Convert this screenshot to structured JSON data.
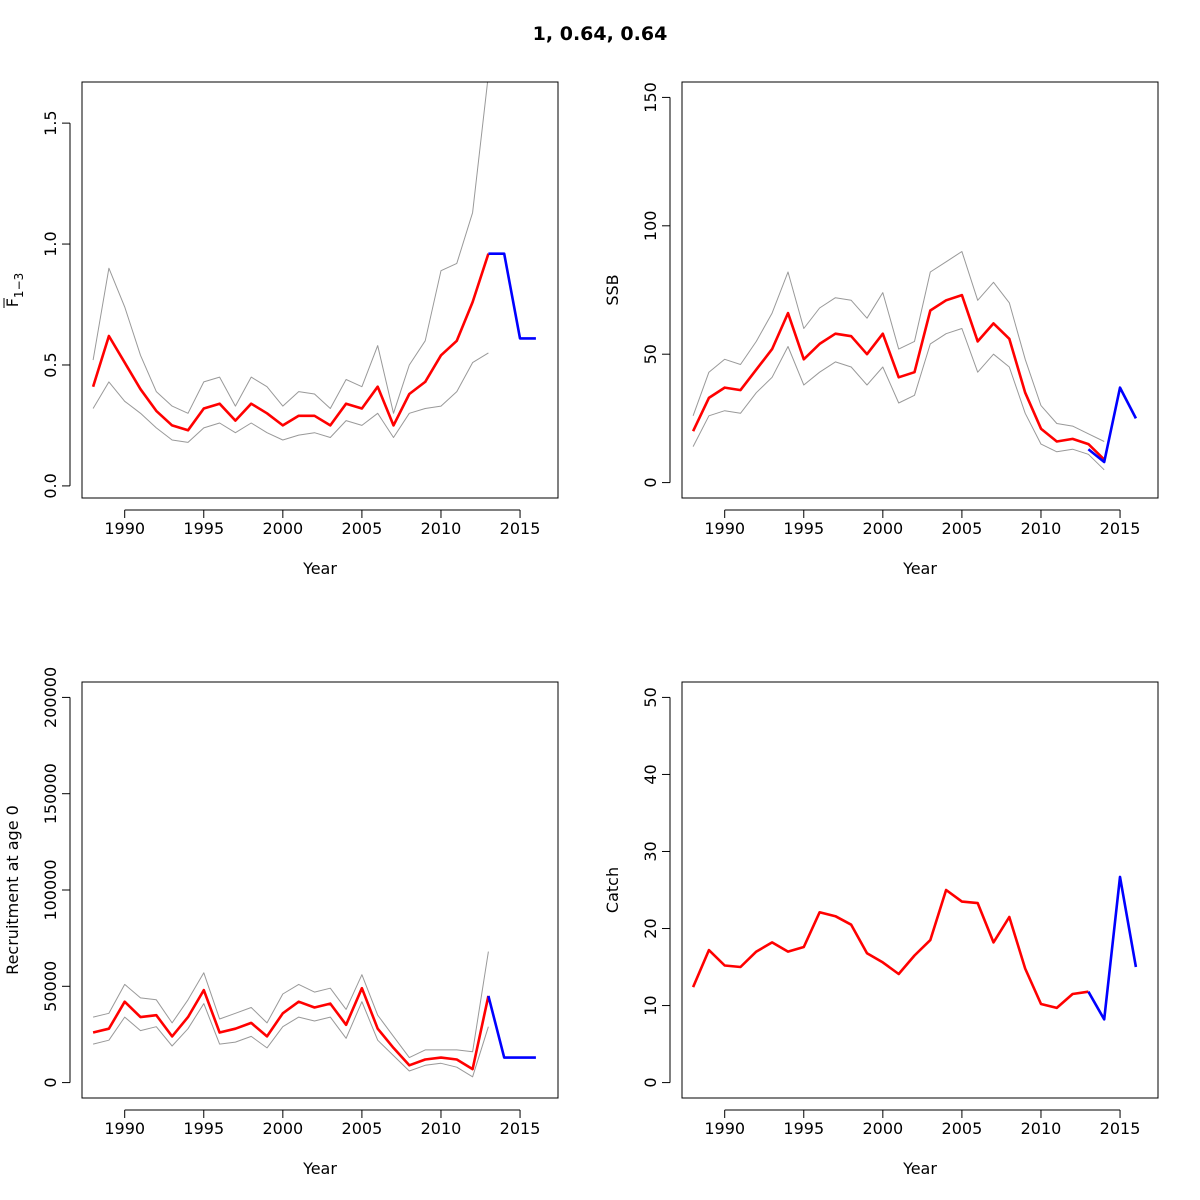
{
  "figure": {
    "title": "1, 0.64, 0.64"
  },
  "colors": {
    "estimate": "#ff0000",
    "projection": "#0000ff",
    "ci": "#999999",
    "axis": "#000000"
  },
  "chart_data": [
    {
      "type": "line",
      "xlabel": "Year",
      "ylabel_main": "F",
      "ylabel_sub": "1−3",
      "xlim": [
        1987.3,
        2017.4
      ],
      "ylim": [
        -0.05,
        1.67
      ],
      "xticks": [
        1990,
        1995,
        2000,
        2005,
        2010,
        2015
      ],
      "yticks": [
        0,
        0.5,
        1,
        1.5
      ],
      "ytick_labels": [
        "0.0",
        "0.5",
        "1.0",
        "1.5"
      ],
      "series": [
        {
          "role": "upper",
          "x": [
            1988,
            1989,
            1990,
            1991,
            1992,
            1993,
            1994,
            1995,
            1996,
            1997,
            1998,
            1999,
            2000,
            2001,
            2002,
            2003,
            2004,
            2005,
            2006,
            2007,
            2008,
            2009,
            2010,
            2011,
            2012,
            2013
          ],
          "values": [
            0.52,
            0.9,
            0.74,
            0.54,
            0.39,
            0.33,
            0.3,
            0.43,
            0.45,
            0.33,
            0.45,
            0.41,
            0.33,
            0.39,
            0.38,
            0.32,
            0.44,
            0.41,
            0.58,
            0.3,
            0.5,
            0.6,
            0.89,
            0.92,
            1.13,
            1.7
          ]
        },
        {
          "role": "lower",
          "x": [
            1988,
            1989,
            1990,
            1991,
            1992,
            1993,
            1994,
            1995,
            1996,
            1997,
            1998,
            1999,
            2000,
            2001,
            2002,
            2003,
            2004,
            2005,
            2006,
            2007,
            2008,
            2009,
            2010,
            2011,
            2012,
            2013
          ],
          "values": [
            0.32,
            0.43,
            0.35,
            0.3,
            0.24,
            0.19,
            0.18,
            0.24,
            0.26,
            0.22,
            0.26,
            0.22,
            0.19,
            0.21,
            0.22,
            0.2,
            0.27,
            0.25,
            0.3,
            0.2,
            0.3,
            0.32,
            0.33,
            0.39,
            0.51,
            0.55
          ]
        },
        {
          "role": "estimate",
          "x": [
            1988,
            1989,
            1990,
            1991,
            1992,
            1993,
            1994,
            1995,
            1996,
            1997,
            1998,
            1999,
            2000,
            2001,
            2002,
            2003,
            2004,
            2005,
            2006,
            2007,
            2008,
            2009,
            2010,
            2011,
            2012,
            2013
          ],
          "values": [
            0.41,
            0.62,
            0.51,
            0.4,
            0.31,
            0.25,
            0.23,
            0.32,
            0.34,
            0.27,
            0.34,
            0.3,
            0.25,
            0.29,
            0.29,
            0.25,
            0.34,
            0.32,
            0.41,
            0.25,
            0.38,
            0.43,
            0.54,
            0.6,
            0.76,
            0.96
          ]
        },
        {
          "role": "projection",
          "x": [
            2013,
            2014,
            2015,
            2016
          ],
          "values": [
            0.96,
            0.96,
            0.61,
            0.61
          ]
        }
      ]
    },
    {
      "type": "line",
      "xlabel": "Year",
      "ylabel": "SSB",
      "xlim": [
        1987.3,
        2017.4
      ],
      "ylim": [
        -6,
        156
      ],
      "xticks": [
        1990,
        1995,
        2000,
        2005,
        2010,
        2015
      ],
      "yticks": [
        0,
        50,
        100,
        150
      ],
      "ytick_labels": [
        "0",
        "50",
        "100",
        "150"
      ],
      "series": [
        {
          "role": "upper",
          "x": [
            1988,
            1989,
            1990,
            1991,
            1992,
            1993,
            1994,
            1995,
            1996,
            1997,
            1998,
            1999,
            2000,
            2001,
            2002,
            2003,
            2004,
            2005,
            2006,
            2007,
            2008,
            2009,
            2010,
            2011,
            2012,
            2013,
            2014
          ],
          "values": [
            26,
            43,
            48,
            46,
            55,
            66,
            82,
            60,
            68,
            72,
            71,
            64,
            74,
            52,
            55,
            82,
            86,
            90,
            71,
            78,
            70,
            48,
            30,
            23,
            22,
            19,
            16
          ]
        },
        {
          "role": "lower",
          "x": [
            1988,
            1989,
            1990,
            1991,
            1992,
            1993,
            1994,
            1995,
            1996,
            1997,
            1998,
            1999,
            2000,
            2001,
            2002,
            2003,
            2004,
            2005,
            2006,
            2007,
            2008,
            2009,
            2010,
            2011,
            2012,
            2013,
            2014
          ],
          "values": [
            14,
            26,
            28,
            27,
            35,
            41,
            53,
            38,
            43,
            47,
            45,
            38,
            45,
            31,
            34,
            54,
            58,
            60,
            43,
            50,
            45,
            27,
            15,
            12,
            13,
            11,
            5
          ]
        },
        {
          "role": "estimate",
          "x": [
            1988,
            1989,
            1990,
            1991,
            1992,
            1993,
            1994,
            1995,
            1996,
            1997,
            1998,
            1999,
            2000,
            2001,
            2002,
            2003,
            2004,
            2005,
            2006,
            2007,
            2008,
            2009,
            2010,
            2011,
            2012,
            2013,
            2014
          ],
          "values": [
            20,
            33,
            37,
            36,
            44,
            52,
            66,
            48,
            54,
            58,
            57,
            50,
            58,
            41,
            43,
            67,
            71,
            73,
            55,
            62,
            56,
            35,
            21,
            16,
            17,
            15,
            9
          ]
        },
        {
          "role": "projection",
          "x": [
            2013,
            2014,
            2015,
            2016
          ],
          "values": [
            13,
            8,
            37,
            25
          ]
        }
      ]
    },
    {
      "type": "line",
      "xlabel": "Year",
      "ylabel": "Recruitment at age 0",
      "xlim": [
        1987.3,
        2017.4
      ],
      "ylim": [
        -8000,
        208000
      ],
      "xticks": [
        1990,
        1995,
        2000,
        2005,
        2010,
        2015
      ],
      "yticks": [
        0,
        50000,
        100000,
        150000,
        200000
      ],
      "ytick_labels": [
        "0",
        "50000",
        "100000",
        "150000",
        "200000"
      ],
      "series": [
        {
          "role": "upper",
          "x": [
            1988,
            1989,
            1990,
            1991,
            1992,
            1993,
            1994,
            1995,
            1996,
            1997,
            1998,
            1999,
            2000,
            2001,
            2002,
            2003,
            2004,
            2005,
            2006,
            2007,
            2008,
            2009,
            2010,
            2011,
            2012,
            2013
          ],
          "values": [
            34000,
            36000,
            51000,
            44000,
            43000,
            31000,
            43000,
            57000,
            33000,
            36000,
            39000,
            31000,
            46000,
            51000,
            47000,
            49000,
            38000,
            56000,
            35000,
            24000,
            13000,
            17000,
            17000,
            17000,
            16000,
            68000
          ]
        },
        {
          "role": "lower",
          "x": [
            1988,
            1989,
            1990,
            1991,
            1992,
            1993,
            1994,
            1995,
            1996,
            1997,
            1998,
            1999,
            2000,
            2001,
            2002,
            2003,
            2004,
            2005,
            2006,
            2007,
            2008,
            2009,
            2010,
            2011,
            2012,
            2013
          ],
          "values": [
            20000,
            22000,
            34000,
            27000,
            29000,
            19000,
            28000,
            41000,
            20000,
            21000,
            24000,
            18000,
            29000,
            34000,
            32000,
            34000,
            23000,
            42000,
            22000,
            14000,
            6000,
            9000,
            10000,
            8000,
            3000,
            29000
          ]
        },
        {
          "role": "estimate",
          "x": [
            1988,
            1989,
            1990,
            1991,
            1992,
            1993,
            1994,
            1995,
            1996,
            1997,
            1998,
            1999,
            2000,
            2001,
            2002,
            2003,
            2004,
            2005,
            2006,
            2007,
            2008,
            2009,
            2010,
            2011,
            2012,
            2013
          ],
          "values": [
            26000,
            28000,
            42000,
            34000,
            35000,
            24000,
            34000,
            48000,
            26000,
            28000,
            31000,
            24000,
            36000,
            42000,
            39000,
            41000,
            30000,
            49000,
            28000,
            18000,
            9000,
            12000,
            13000,
            12000,
            7000,
            45000
          ]
        },
        {
          "role": "projection",
          "x": [
            2013,
            2014,
            2015,
            2016
          ],
          "values": [
            45000,
            13000,
            13000,
            13000
          ]
        }
      ]
    },
    {
      "type": "line",
      "xlabel": "Year",
      "ylabel": "Catch",
      "xlim": [
        1987.3,
        2017.4
      ],
      "ylim": [
        -2,
        52
      ],
      "xticks": [
        1990,
        1995,
        2000,
        2005,
        2010,
        2015
      ],
      "yticks": [
        0,
        10,
        20,
        30,
        40,
        50
      ],
      "ytick_labels": [
        "0",
        "10",
        "20",
        "30",
        "40",
        "50"
      ],
      "series": [
        {
          "role": "estimate",
          "x": [
            1988,
            1989,
            1990,
            1991,
            1992,
            1993,
            1994,
            1995,
            1996,
            1997,
            1998,
            1999,
            2000,
            2001,
            2002,
            2003,
            2004,
            2005,
            2006,
            2007,
            2008,
            2009,
            2010,
            2011,
            2012,
            2013
          ],
          "values": [
            12.4,
            17.2,
            15.2,
            15.0,
            17.0,
            18.2,
            17.0,
            17.6,
            22.1,
            21.6,
            20.5,
            16.8,
            15.6,
            14.1,
            16.5,
            18.5,
            25.0,
            23.5,
            23.3,
            18.2,
            21.5,
            14.8,
            10.2,
            9.7,
            11.5,
            11.8
          ]
        },
        {
          "role": "projection",
          "x": [
            2013,
            2014,
            2015,
            2016
          ],
          "values": [
            11.8,
            8.2,
            26.7,
            15.0
          ]
        }
      ]
    }
  ]
}
